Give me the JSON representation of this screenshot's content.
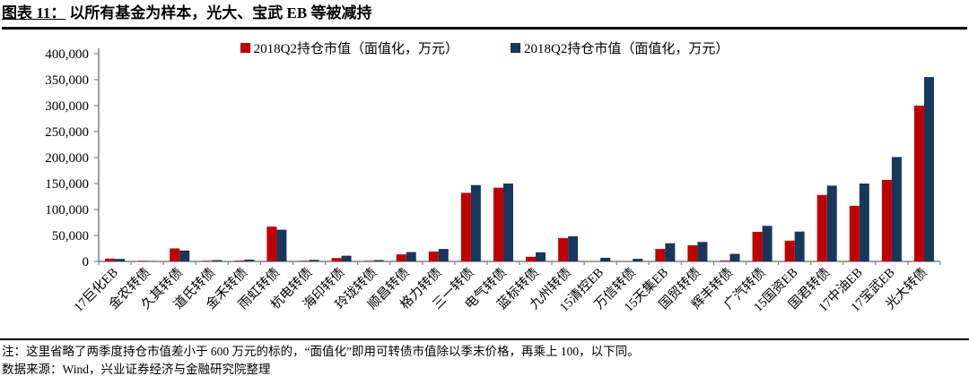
{
  "page": {
    "title_prefix": "图表 11：",
    "title": "以所有基金为样本，光大、宝武 EB 等被减持",
    "note": "注：这里省略了两季度持仓市值差小于 600 万元的标的，“面值化”即用可转债市值除以季末价格，再乘上 100，以下同。",
    "source": "数据来源：Wind，兴业证券经济与金融研究院整理"
  },
  "chart_data": {
    "type": "bar",
    "title": "以所有基金为样本，光大、宝武 EB 等被减持",
    "categories": [
      "17巨化EB",
      "金农转债",
      "久其转债",
      "道氏转债",
      "金禾转债",
      "雨虹转债",
      "杭电转债",
      "海印转债",
      "玲珑转债",
      "顺昌转债",
      "格力转债",
      "三一转债",
      "电气转债",
      "蓝标转债",
      "九州转债",
      "15清控EB",
      "万信转债",
      "15天集EB",
      "国贸转债",
      "辉丰转债",
      "广汽转债",
      "15国资EB",
      "国君转债",
      "17中油EB",
      "17宝武EB",
      "光大转债"
    ],
    "series": [
      {
        "name": "2018Q2持仓市值（面值化，万元）",
        "color": "#c00000",
        "values": [
          5500,
          1000,
          25000,
          1000,
          1500,
          67000,
          1000,
          6500,
          1000,
          13500,
          19000,
          132000,
          142000,
          9000,
          45000,
          0,
          0,
          24000,
          31000,
          1500,
          57000,
          40000,
          128000,
          107000,
          157000,
          300000
        ]
      },
      {
        "name": "2018Q2持仓市值（面值化，万元）",
        "color": "#17375e",
        "values": [
          4800,
          400,
          21000,
          2500,
          3500,
          61000,
          3000,
          11000,
          2500,
          18000,
          24000,
          147000,
          150000,
          17500,
          48500,
          7000,
          5000,
          35000,
          37500,
          14500,
          68500,
          57500,
          146000,
          150000,
          201000,
          355000
        ]
      }
    ],
    "xlabel": "",
    "ylabel": "",
    "ylim": [
      0,
      400000
    ],
    "ytick_step": 50000,
    "grid": false,
    "legend_position": "top",
    "axis_color": "#808080"
  }
}
